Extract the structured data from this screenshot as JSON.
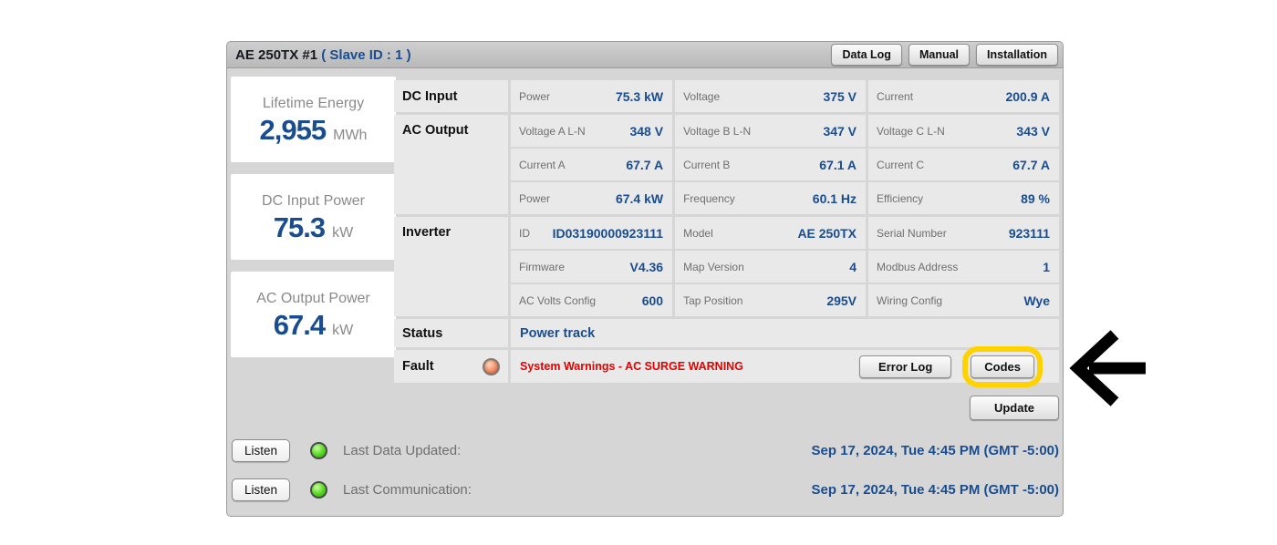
{
  "header": {
    "title": "AE 250TX #1",
    "subtitle": "( Slave ID : 1 )",
    "buttons": [
      "Data Log",
      "Manual",
      "Installation"
    ]
  },
  "stats": [
    {
      "label": "Lifetime Energy",
      "value": "2,955",
      "unit": "MWh"
    },
    {
      "label": "DC Input Power",
      "value": "75.3",
      "unit": "kW"
    },
    {
      "label": "AC Output Power",
      "value": "67.4",
      "unit": "kW"
    }
  ],
  "table": {
    "sections": [
      {
        "label": "DC Input",
        "rows": [
          [
            {
              "label": "Power",
              "value": "75.3 kW"
            },
            {
              "label": "Voltage",
              "value": "375 V"
            },
            {
              "label": "Current",
              "value": "200.9 A"
            }
          ]
        ]
      },
      {
        "label": "AC Output",
        "rows": [
          [
            {
              "label": "Voltage A L-N",
              "value": "348 V"
            },
            {
              "label": "Voltage B L-N",
              "value": "347 V"
            },
            {
              "label": "Voltage C L-N",
              "value": "343 V"
            }
          ],
          [
            {
              "label": "Current A",
              "value": "67.7 A"
            },
            {
              "label": "Current B",
              "value": "67.1 A"
            },
            {
              "label": "Current C",
              "value": "67.7 A"
            }
          ],
          [
            {
              "label": "Power",
              "value": "67.4 kW"
            },
            {
              "label": "Frequency",
              "value": "60.1 Hz"
            },
            {
              "label": "Efficiency",
              "value": "89 %"
            }
          ]
        ]
      },
      {
        "label": "Inverter",
        "rows": [
          [
            {
              "label": "ID",
              "value": "ID03190000923111"
            },
            {
              "label": "Model",
              "value": "AE 250TX"
            },
            {
              "label": "Serial Number",
              "value": "923111"
            }
          ],
          [
            {
              "label": "Firmware",
              "value": "V4.36"
            },
            {
              "label": "Map Version",
              "value": "4"
            },
            {
              "label": "Modbus Address",
              "value": "1"
            }
          ],
          [
            {
              "label": "AC Volts Config",
              "value": "600"
            },
            {
              "label": "Tap Position",
              "value": "295V"
            },
            {
              "label": "Wiring Config",
              "value": "Wye"
            }
          ]
        ]
      }
    ],
    "status": {
      "label": "Status",
      "value": "Power track"
    },
    "fault": {
      "label": "Fault",
      "led_icon": "orange-led",
      "message": "System Warnings - AC SURGE WARNING",
      "error_log_button": "Error Log",
      "codes_button": "Codes"
    }
  },
  "update_button": "Update",
  "footer": {
    "rows": [
      {
        "button": "Listen",
        "led_icon": "green-led",
        "label": "Last Data Updated:",
        "value": "Sep 17, 2024, Tue 4:45 PM (GMT -5:00)"
      },
      {
        "button": "Listen",
        "led_icon": "green-led",
        "label": "Last Communication:",
        "value": "Sep 17, 2024, Tue 4:45 PM (GMT -5:00)"
      }
    ]
  },
  "annotations": {
    "arrow_icon": "left-arrow",
    "highlight_target": "Codes"
  },
  "colors": {
    "accent_blue": "#1a4d8f",
    "alert_red": "#e60000",
    "highlight_yellow": "#ffd200",
    "led_green": "#53d61f",
    "led_orange": "#f08a62",
    "panel_header_gray": "#c4c4c4",
    "panel_body_gray": "#d6d6d6",
    "cell_gray": "#e9e9e9"
  }
}
